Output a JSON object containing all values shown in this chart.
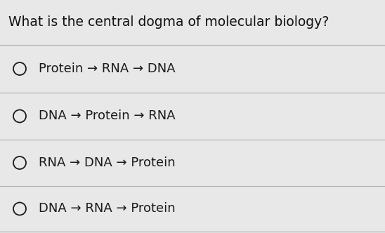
{
  "title": "What is the central dogma of molecular biology?",
  "title_fontsize": 13.5,
  "options": [
    "Protein → RNA → DNA",
    "DNA → Protein → RNA",
    "RNA → DNA → Protein",
    "DNA → RNA → Protein"
  ],
  "option_fontsize": 13,
  "background_color": "#e8e8e8",
  "text_color": "#1a1a1a",
  "line_color": "#b0b0b0",
  "title_color": "#111111"
}
